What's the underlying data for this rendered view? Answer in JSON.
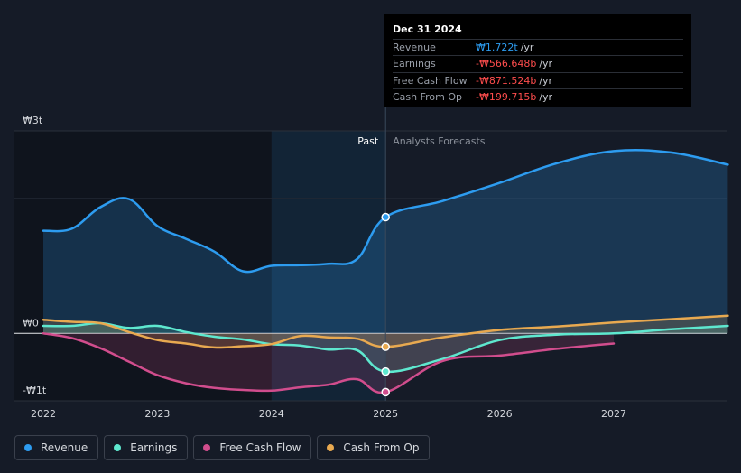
{
  "chart_data": {
    "type": "line",
    "y_ticks": [
      {
        "value": 3000,
        "label": "₩3t"
      },
      {
        "value": 0,
        "label": "₩0"
      },
      {
        "value": -1000,
        "label": "-₩1t"
      }
    ],
    "x_ticks": [
      {
        "value": 2022,
        "label": "2022"
      },
      {
        "value": 2023,
        "label": "2023"
      },
      {
        "value": 2024,
        "label": "2024"
      },
      {
        "value": 2025,
        "label": "2025"
      },
      {
        "value": 2026,
        "label": "2026"
      },
      {
        "value": 2027,
        "label": "2027"
      }
    ],
    "ylim": [
      -1000,
      3000
    ],
    "xlim": [
      2021.75,
      2028.0
    ],
    "divider_x": 2025.0,
    "highlight_start_x": 2024.0,
    "past_label": "Past",
    "forecast_label": "Analysts Forecasts",
    "series": [
      {
        "name": "Revenue",
        "color": "#2d9cf0",
        "x": [
          2022.0,
          2022.25,
          2022.5,
          2022.75,
          2023.0,
          2023.25,
          2023.5,
          2023.75,
          2024.0,
          2024.25,
          2024.5,
          2024.75,
          2025.0,
          2025.5,
          2026.0,
          2026.5,
          2027.0,
          2027.5,
          2028.0
        ],
        "y": [
          1520,
          1550,
          1870,
          1990,
          1590,
          1400,
          1210,
          920,
          1000,
          1010,
          1030,
          1100,
          1722,
          1960,
          2230,
          2520,
          2700,
          2680,
          2500
        ]
      },
      {
        "name": "Earnings",
        "color": "#5ee8cf",
        "x": [
          2022.0,
          2022.25,
          2022.5,
          2022.75,
          2023.0,
          2023.25,
          2023.5,
          2023.75,
          2024.0,
          2024.25,
          2024.5,
          2024.75,
          2025.0,
          2025.5,
          2026.0,
          2026.5,
          2027.0,
          2027.5,
          2028.0
        ],
        "y": [
          110,
          110,
          150,
          80,
          110,
          20,
          -50,
          -90,
          -160,
          -180,
          -240,
          -250,
          -566.648,
          -380,
          -100,
          -20,
          0,
          60,
          110
        ]
      },
      {
        "name": "Free Cash Flow",
        "color": "#d14d8d",
        "x": [
          2022.0,
          2022.25,
          2022.5,
          2022.75,
          2023.0,
          2023.25,
          2023.5,
          2023.75,
          2024.0,
          2024.25,
          2024.5,
          2024.75,
          2025.0,
          2025.5,
          2026.0,
          2026.5,
          2027.0
        ],
        "y": [
          0,
          -70,
          -220,
          -420,
          -620,
          -740,
          -810,
          -840,
          -850,
          -800,
          -760,
          -680,
          -871.524,
          -410,
          -330,
          -230,
          -150
        ]
      },
      {
        "name": "Cash From Op",
        "color": "#e8a950",
        "x": [
          2022.0,
          2022.25,
          2022.5,
          2022.75,
          2023.0,
          2023.25,
          2023.5,
          2023.75,
          2024.0,
          2024.25,
          2024.5,
          2024.75,
          2025.0,
          2025.5,
          2026.0,
          2026.5,
          2027.0,
          2027.5,
          2028.0
        ],
        "y": [
          200,
          170,
          150,
          20,
          -100,
          -150,
          -210,
          -190,
          -160,
          -40,
          -60,
          -80,
          -199.715,
          -60,
          50,
          100,
          160,
          210,
          260
        ]
      }
    ]
  },
  "tooltip": {
    "date": "Dec 31 2024",
    "rows": [
      {
        "label": "Revenue",
        "value": "₩1.722t",
        "unit": "/yr"
      },
      {
        "label": "Earnings",
        "value": "-₩566.648b",
        "unit": "/yr"
      },
      {
        "label": "Free Cash Flow",
        "value": "-₩871.524b",
        "unit": "/yr"
      },
      {
        "label": "Cash From Op",
        "value": "-₩199.715b",
        "unit": "/yr"
      }
    ]
  },
  "legend": [
    {
      "label": "Revenue",
      "color": "#2d9cf0"
    },
    {
      "label": "Earnings",
      "color": "#5ee8cf"
    },
    {
      "label": "Free Cash Flow",
      "color": "#d14d8d"
    },
    {
      "label": "Cash From Op",
      "color": "#e8a950"
    }
  ]
}
